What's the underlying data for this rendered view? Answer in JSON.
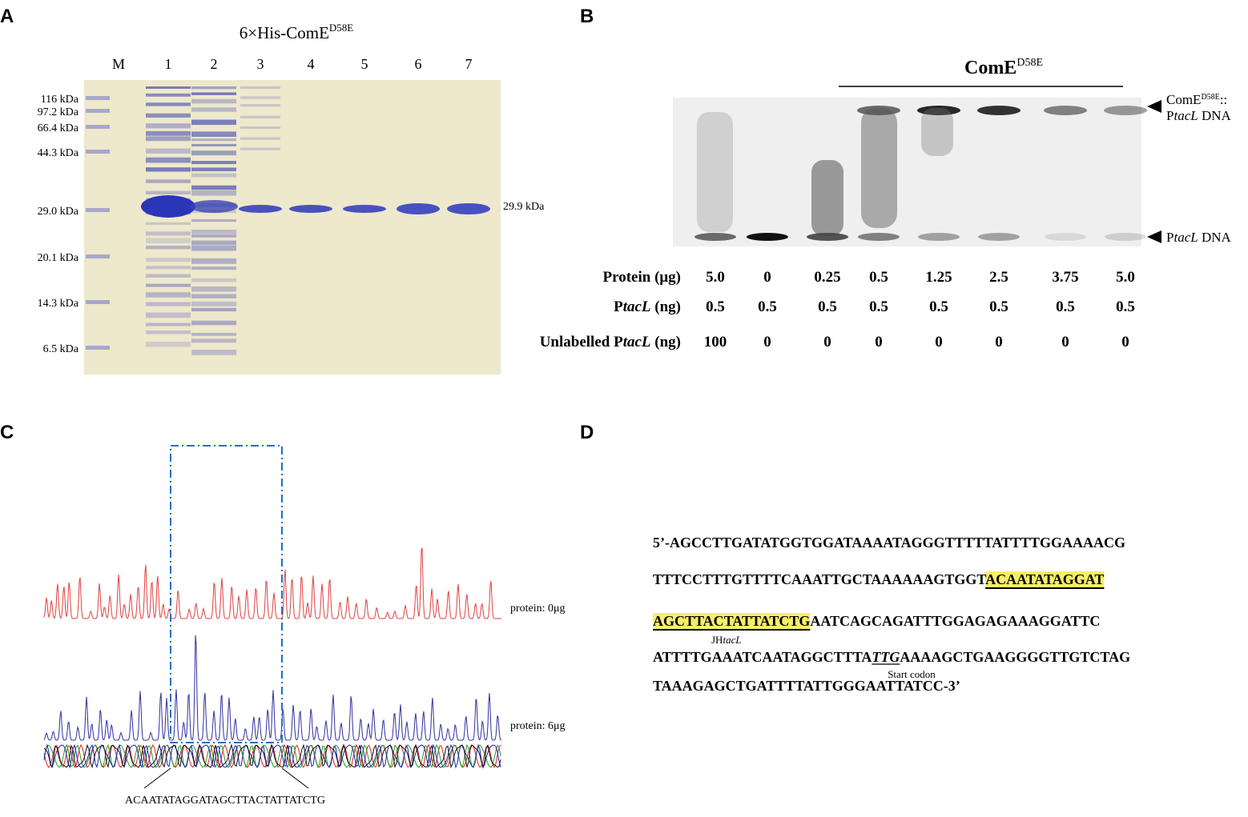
{
  "panels": [
    {
      "label": "A",
      "title": "6×His-ComE",
      "title_superscript": "D58E",
      "lanes": [
        "M",
        "1",
        "2",
        "3",
        "4",
        "5",
        "6",
        "7"
      ],
      "markers": [
        "116 kDa",
        "97.2 kDa",
        "66.4 kDa",
        "44.3 kDa",
        "29.0 kDa",
        "20.1 kDa",
        "14.3 kDa",
        "6.5 kDa"
      ],
      "band_label": "29.9 kDa"
    },
    {
      "label": "B",
      "title": "ComE",
      "title_superscript": "D58E",
      "complex_label": {
        "name": "ComE",
        "superscript": "D58E",
        "suffix": "::",
        "prefix": "P",
        "italic": "tacL",
        "end": " DNA"
      },
      "free_label": {
        "prefix": "P",
        "italic": "tacL",
        "end": " DNA"
      },
      "rows": [
        {
          "label": {
            "text": "Protein (μg)"
          },
          "values": [
            "5.0",
            "0",
            "0.25",
            "0.5",
            "1.25",
            "2.5",
            "3.75",
            "5.0"
          ]
        },
        {
          "label": {
            "prefix": "P",
            "italic": "tacL",
            "suffix": " (ng)"
          },
          "values": [
            "0.5",
            "0.5",
            "0.5",
            "0.5",
            "0.5",
            "0.5",
            "0.5",
            "0.5"
          ]
        },
        {
          "label": {
            "prefix": "Unlabelled P",
            "italic": "tacL",
            "suffix": " (ng)"
          },
          "values": [
            "100",
            "0",
            "0",
            "0",
            "0",
            "0",
            "0",
            "0"
          ]
        }
      ]
    },
    {
      "label": "C",
      "trace_labels": [
        "protein: 0μg",
        "protein: 6μg"
      ],
      "sequence": "ACAATATAGGATAGCTTACTATTATCTG"
    },
    {
      "label": "D",
      "line1": "5’-AGCCTTGATATGGTGGATAAAATAGGGTTTTTATTTTGGAAAACG",
      "line2": {
        "plain": "TTTCCTTTGTTTTCAAATTGCTAAAAAAGTGGT",
        "highlight": "ACAATATAGGAT"
      },
      "line3": {
        "highlight": "AGCTTACTATTATCTG",
        "plain": "AATCAGCAGATTTGGAGAGAAAGGATTC"
      },
      "site_label": {
        "prefix": "JH",
        "italic": "tacL"
      },
      "line4": {
        "before": "ATTTTGAAATCAATAGGCTTTA",
        "codon": "TTG",
        "after": "AAAAGCTGAAGGGGTTGTCTAG"
      },
      "codon_label": "Start codon",
      "line5": "TAAAGAGCTGATTTTATTGGGAATTATCC-3’"
    }
  ]
}
